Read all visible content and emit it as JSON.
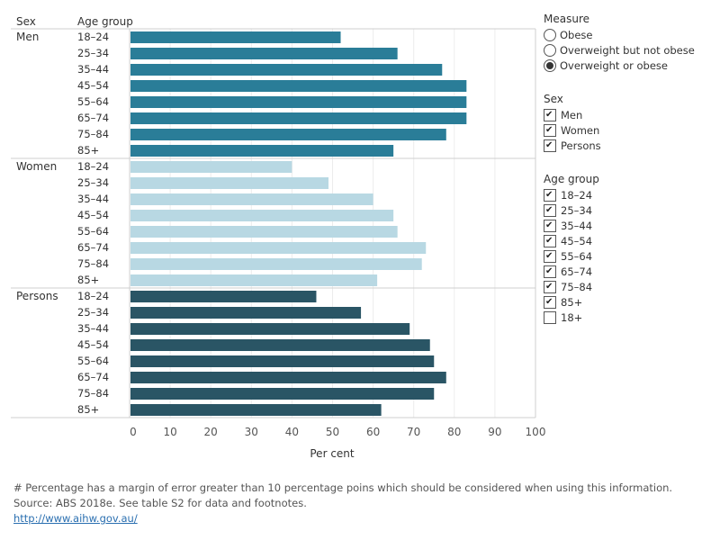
{
  "chart_data": {
    "type": "bar",
    "orientation": "horizontal",
    "row_headers": [
      "Sex",
      "Age group"
    ],
    "xlabel": "Per cent",
    "xlim": [
      0,
      100
    ],
    "xticks": [
      0,
      10,
      20,
      30,
      40,
      50,
      60,
      70,
      80,
      90,
      100
    ],
    "grid": true,
    "groups": [
      {
        "name": "Men",
        "color": "#2a7d98",
        "categories": [
          "18–24",
          "25–34",
          "35–44",
          "45–54",
          "55–64",
          "65–74",
          "75–84",
          "85+"
        ],
        "values": [
          52,
          66,
          77,
          83,
          83,
          83,
          78,
          65
        ]
      },
      {
        "name": "Women",
        "color": "#b8d8e3",
        "categories": [
          "18–24",
          "25–34",
          "35–44",
          "45–54",
          "55–64",
          "65–74",
          "75–84",
          "85+"
        ],
        "values": [
          40,
          49,
          60,
          65,
          66,
          73,
          72,
          61
        ]
      },
      {
        "name": "Persons",
        "color": "#2a5565",
        "categories": [
          "18–24",
          "25–34",
          "35–44",
          "45–54",
          "55–64",
          "65–74",
          "75–84",
          "85+"
        ],
        "values": [
          46,
          57,
          69,
          74,
          75,
          78,
          75,
          62
        ]
      }
    ]
  },
  "filters": {
    "measure": {
      "title": "Measure",
      "options": [
        {
          "label": "Obese",
          "selected": false
        },
        {
          "label": "Overweight but not obese",
          "selected": false
        },
        {
          "label": "Overweight or obese",
          "selected": true
        }
      ]
    },
    "sex": {
      "title": "Sex",
      "options": [
        {
          "label": "Men",
          "checked": true
        },
        {
          "label": "Women",
          "checked": true
        },
        {
          "label": "Persons",
          "checked": true
        }
      ]
    },
    "age_group": {
      "title": "Age group",
      "options": [
        {
          "label": "18–24",
          "checked": true
        },
        {
          "label": "25–34",
          "checked": true
        },
        {
          "label": "35–44",
          "checked": true
        },
        {
          "label": "45–54",
          "checked": true
        },
        {
          "label": "55–64",
          "checked": true
        },
        {
          "label": "65–74",
          "checked": true
        },
        {
          "label": "75–84",
          "checked": true
        },
        {
          "label": "85+",
          "checked": true
        },
        {
          "label": "18+",
          "checked": false
        }
      ]
    }
  },
  "footer": {
    "note": "# Percentage has a margin of error greater than 10 percentage poins which should be considered when using this information.",
    "source": "Source: ABS 2018e. See table S2 for data and footnotes.",
    "link": "http://www.aihw.gov.au/"
  }
}
